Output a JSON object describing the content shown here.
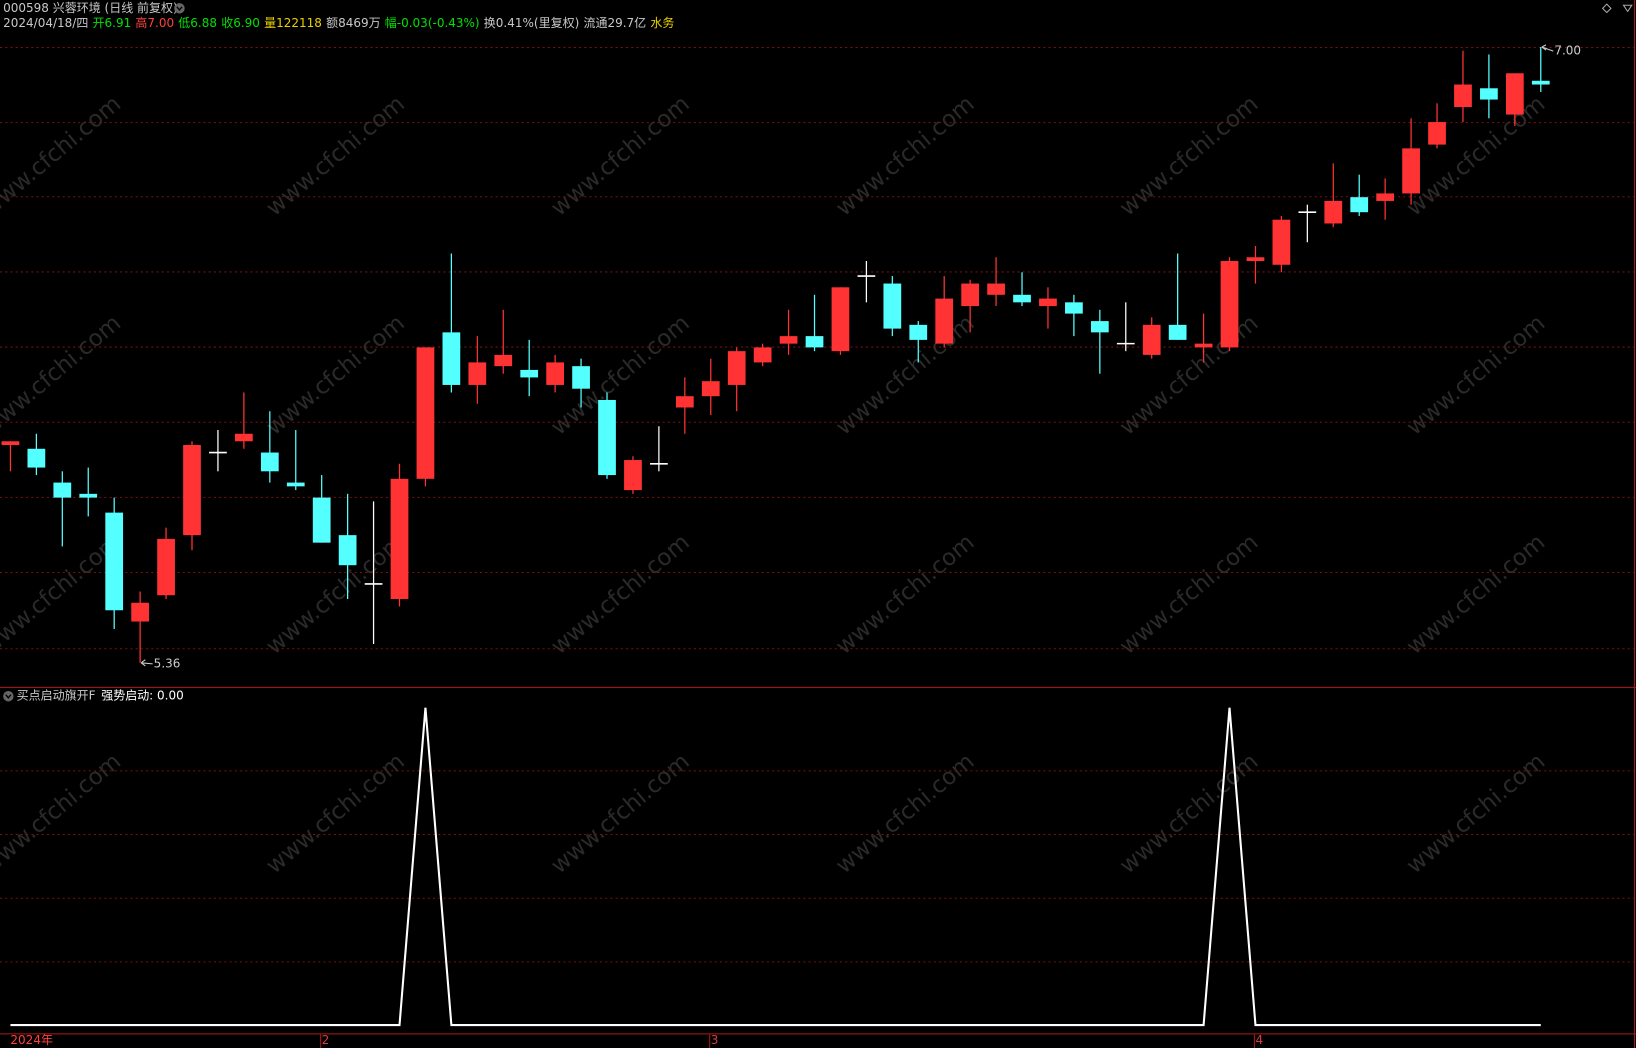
{
  "chart_data": {
    "type": "candlestick",
    "header": {
      "title": "000598 兴蓉环境 (日线 前复权)",
      "title_color": "#c8c8c8",
      "items": [
        {
          "text": "2024/04/18/四",
          "color": "#c8c8c8"
        },
        {
          "text": "开6.91",
          "color": "#00e000"
        },
        {
          "text": "高7.00",
          "color": "#ff4040"
        },
        {
          "text": "低6.88",
          "color": "#00e000"
        },
        {
          "text": "收6.90",
          "color": "#00e000"
        },
        {
          "text": "量122118",
          "color": "#e8d000"
        },
        {
          "text": "额8469万",
          "color": "#c8c8c8"
        },
        {
          "text": "幅-0.03(-0.43%)",
          "color": "#00e000"
        },
        {
          "text": "换0.41%(里复权)",
          "color": "#c8c8c8"
        },
        {
          "text": "流通29.7亿",
          "color": "#c8c8c8"
        },
        {
          "text": "水务",
          "color": "#e8d000"
        }
      ]
    },
    "watermark": "www.cfchi.com",
    "up_color": "#ff3333",
    "down_color": "#54ffff",
    "flat_color": "#ffffff",
    "max_label": "7.00",
    "min_label": "5.36",
    "categories": [
      "2024年",
      null,
      null,
      null,
      null,
      null,
      null,
      null,
      null,
      null,
      null,
      null,
      "2",
      null,
      null,
      null,
      null,
      null,
      null,
      null,
      null,
      null,
      null,
      null,
      null,
      null,
      null,
      "3",
      null,
      null,
      null,
      null,
      null,
      null,
      null,
      null,
      null,
      null,
      null,
      null,
      null,
      null,
      null,
      null,
      null,
      null,
      null,
      null,
      "4",
      null,
      null,
      null,
      null,
      null,
      null,
      null,
      null,
      null,
      null,
      null
    ],
    "open": [
      5.94,
      5.93,
      5.84,
      5.81,
      5.76,
      5.47,
      5.54,
      5.7,
      5.92,
      5.95,
      5.92,
      5.84,
      5.8,
      5.7,
      5.57,
      5.53,
      5.85,
      6.24,
      6.1,
      6.15,
      6.14,
      6.1,
      6.15,
      6.06,
      5.82,
      5.89,
      6.04,
      6.07,
      6.1,
      6.16,
      6.21,
      6.23,
      6.19,
      6.39,
      6.37,
      6.26,
      6.21,
      6.31,
      6.34,
      6.34,
      6.31,
      6.32,
      6.27,
      6.21,
      6.18,
      6.26,
      6.2,
      6.2,
      6.43,
      6.42,
      6.56,
      6.53,
      6.6,
      6.59,
      6.61,
      6.74,
      6.84,
      6.89,
      6.82,
      6.91
    ],
    "high": [
      5.95,
      5.97,
      5.87,
      5.88,
      5.8,
      5.55,
      5.72,
      5.95,
      5.98,
      6.08,
      6.03,
      5.98,
      5.86,
      5.81,
      5.79,
      5.89,
      6.2,
      6.45,
      6.23,
      6.3,
      6.22,
      6.18,
      6.17,
      6.08,
      5.91,
      5.99,
      6.12,
      6.17,
      6.2,
      6.21,
      6.3,
      6.34,
      6.36,
      6.43,
      6.39,
      6.27,
      6.39,
      6.38,
      6.44,
      6.4,
      6.36,
      6.34,
      6.3,
      6.32,
      6.28,
      6.45,
      6.29,
      6.44,
      6.47,
      6.55,
      6.58,
      6.69,
      6.66,
      6.65,
      6.81,
      6.85,
      6.99,
      6.98,
      6.93,
      7.0
    ],
    "low": [
      5.87,
      5.86,
      5.67,
      5.75,
      5.45,
      5.36,
      5.53,
      5.66,
      5.87,
      5.93,
      5.84,
      5.82,
      5.68,
      5.53,
      5.41,
      5.51,
      5.83,
      6.08,
      6.05,
      6.13,
      6.07,
      6.08,
      6.04,
      5.85,
      5.81,
      5.87,
      5.97,
      6.02,
      6.03,
      6.15,
      6.18,
      6.19,
      6.18,
      6.32,
      6.23,
      6.16,
      6.2,
      6.24,
      6.31,
      6.31,
      6.25,
      6.23,
      6.13,
      6.19,
      6.17,
      6.22,
      6.16,
      6.19,
      6.37,
      6.4,
      6.48,
      6.52,
      6.55,
      6.54,
      6.58,
      6.73,
      6.8,
      6.81,
      6.79,
      6.88
    ],
    "close": [
      5.95,
      5.88,
      5.8,
      5.8,
      5.5,
      5.52,
      5.69,
      5.94,
      5.92,
      5.97,
      5.87,
      5.83,
      5.68,
      5.62,
      5.57,
      5.85,
      6.2,
      6.1,
      6.16,
      6.18,
      6.12,
      6.16,
      6.09,
      5.86,
      5.9,
      5.89,
      6.07,
      6.11,
      6.19,
      6.2,
      6.23,
      6.2,
      6.36,
      6.39,
      6.25,
      6.22,
      6.33,
      6.37,
      6.37,
      6.32,
      6.33,
      6.29,
      6.24,
      6.21,
      6.26,
      6.22,
      6.21,
      6.43,
      6.44,
      6.54,
      6.56,
      6.59,
      6.56,
      6.61,
      6.73,
      6.8,
      6.9,
      6.86,
      6.93,
      6.9
    ],
    "indicator": {
      "title": "买点启动旗开F",
      "readout": "强势启动: 0.00",
      "color": "#ffffff",
      "values": [
        0,
        0,
        0,
        0,
        0,
        0,
        0,
        0,
        0,
        0,
        0,
        0,
        0,
        0,
        0,
        0,
        1,
        0,
        0,
        0,
        0,
        0,
        0,
        0,
        0,
        0,
        0,
        0,
        0,
        0,
        0,
        0,
        0,
        0,
        0,
        0,
        0,
        0,
        0,
        0,
        0,
        0,
        0,
        0,
        0,
        0,
        0,
        1,
        0,
        0,
        0,
        0,
        0,
        0,
        0,
        0,
        0,
        0,
        0,
        0
      ]
    }
  }
}
